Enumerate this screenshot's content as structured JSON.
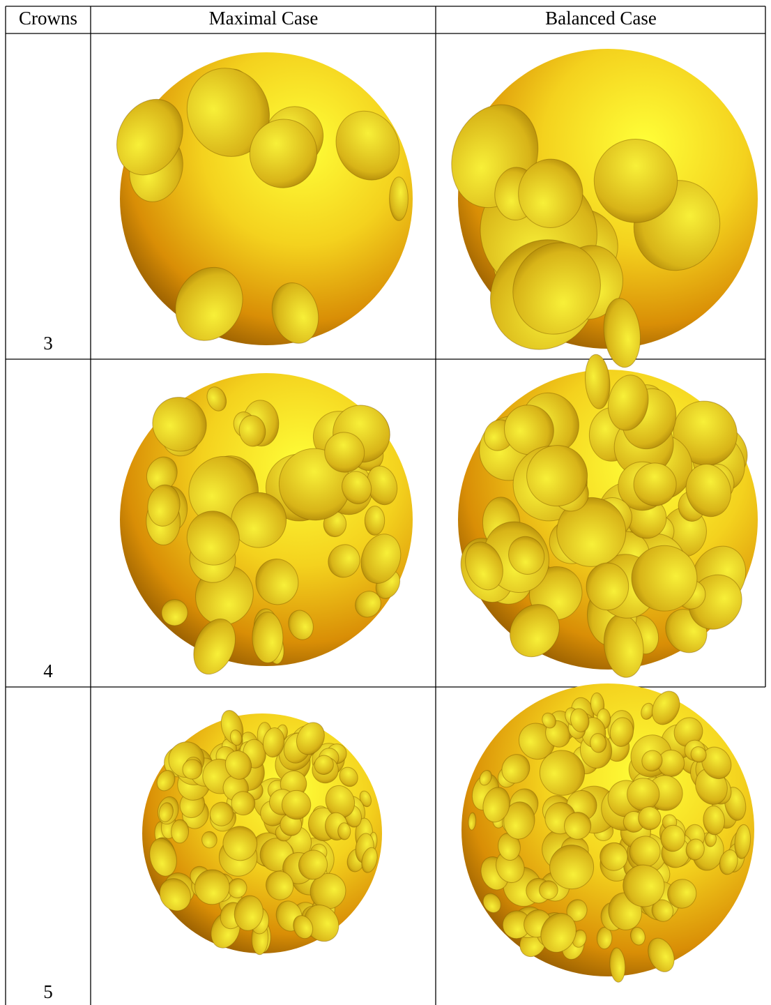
{
  "table": {
    "header": [
      "Crowns",
      "Maximal Case",
      "Balanced Case"
    ],
    "rows": [
      [
        "3"
      ],
      [
        "4"
      ],
      [
        "5"
      ]
    ]
  }
}
